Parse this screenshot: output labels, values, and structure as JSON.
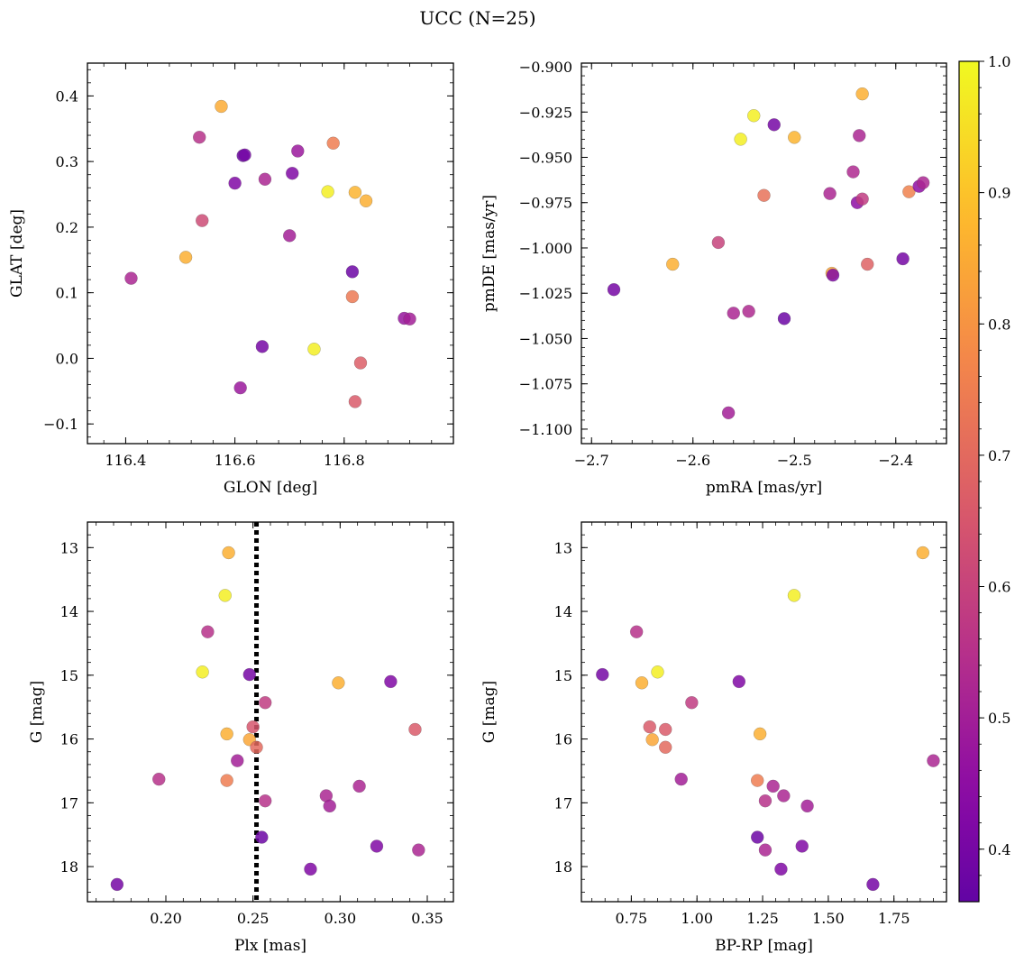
{
  "title": "UCC (N=25)",
  "colormap": {
    "name": "plasma",
    "stops": [
      "#0d0887",
      "#5302a3",
      "#8b0aa5",
      "#b83289",
      "#db5c68",
      "#f48849",
      "#febd2a",
      "#f0f921"
    ],
    "min": 0.36,
    "max": 1.0,
    "ticks": [
      "0.4",
      "0.5",
      "0.6",
      "0.7",
      "0.8",
      "0.9",
      "1.0"
    ],
    "tick_values": [
      0.4,
      0.5,
      0.6,
      0.7,
      0.8,
      0.9,
      1.0
    ]
  },
  "chart_data": [
    {
      "type": "scatter",
      "xlabel": "GLON [deg]",
      "ylabel": "GLAT [deg]",
      "xlim": [
        116.33,
        117.0
      ],
      "ylim": [
        -0.13,
        0.45
      ],
      "xticks": [
        116.4,
        116.6,
        116.8
      ],
      "xtick_labels": [
        "116.4",
        "116.6",
        "116.8"
      ],
      "yticks": [
        -0.1,
        0.0,
        0.1,
        0.2,
        0.3,
        0.4
      ],
      "ytick_labels": [
        "−0.1",
        "0.0",
        "0.1",
        "0.2",
        "0.3",
        "0.4"
      ],
      "points": [
        {
          "x": 116.41,
          "y": 0.122,
          "c": 0.52
        },
        {
          "x": 116.51,
          "y": 0.154,
          "c": 0.86
        },
        {
          "x": 116.535,
          "y": 0.337,
          "c": 0.55
        },
        {
          "x": 116.54,
          "y": 0.21,
          "c": 0.62
        },
        {
          "x": 116.575,
          "y": 0.384,
          "c": 0.85
        },
        {
          "x": 116.6,
          "y": 0.267,
          "c": 0.42
        },
        {
          "x": 116.615,
          "y": 0.309,
          "c": 0.38
        },
        {
          "x": 116.618,
          "y": 0.31,
          "c": 0.4
        },
        {
          "x": 116.61,
          "y": -0.045,
          "c": 0.48
        },
        {
          "x": 116.655,
          "y": 0.273,
          "c": 0.52
        },
        {
          "x": 116.65,
          "y": 0.018,
          "c": 0.4
        },
        {
          "x": 116.7,
          "y": 0.187,
          "c": 0.5
        },
        {
          "x": 116.705,
          "y": 0.282,
          "c": 0.42
        },
        {
          "x": 116.715,
          "y": 0.316,
          "c": 0.48
        },
        {
          "x": 116.745,
          "y": 0.014,
          "c": 0.98
        },
        {
          "x": 116.77,
          "y": 0.254,
          "c": 0.98
        },
        {
          "x": 116.78,
          "y": 0.328,
          "c": 0.75
        },
        {
          "x": 116.815,
          "y": 0.132,
          "c": 0.38
        },
        {
          "x": 116.815,
          "y": 0.094,
          "c": 0.74
        },
        {
          "x": 116.82,
          "y": 0.253,
          "c": 0.87
        },
        {
          "x": 116.82,
          "y": -0.066,
          "c": 0.66
        },
        {
          "x": 116.83,
          "y": -0.007,
          "c": 0.67
        },
        {
          "x": 116.84,
          "y": 0.24,
          "c": 0.86
        },
        {
          "x": 116.91,
          "y": 0.061,
          "c": 0.47
        },
        {
          "x": 116.92,
          "y": 0.06,
          "c": 0.5
        }
      ]
    },
    {
      "type": "scatter",
      "xlabel": "pmRA [mas/yr]",
      "ylabel": "pmDE [mas/yr]",
      "xlim": [
        -2.71,
        -2.35
      ],
      "ylim": [
        -1.108,
        -0.898
      ],
      "xticks": [
        -2.7,
        -2.6,
        -2.5,
        -2.4
      ],
      "xtick_labels": [
        "−2.7",
        "−2.6",
        "−2.5",
        "−2.4"
      ],
      "yticks": [
        -1.1,
        -1.075,
        -1.05,
        -1.025,
        -1.0,
        -0.975,
        -0.95,
        -0.925,
        -0.9
      ],
      "ytick_labels": [
        "−1.100",
        "−1.075",
        "−1.050",
        "−1.025",
        "−1.000",
        "−0.975",
        "−0.950",
        "−0.925",
        "−0.900"
      ],
      "points": [
        {
          "x": -2.678,
          "y": -1.023,
          "c": 0.4
        },
        {
          "x": -2.62,
          "y": -1.009,
          "c": 0.86
        },
        {
          "x": -2.575,
          "y": -0.997,
          "c": 0.6
        },
        {
          "x": -2.565,
          "y": -1.091,
          "c": 0.5
        },
        {
          "x": -2.56,
          "y": -1.036,
          "c": 0.52
        },
        {
          "x": -2.553,
          "y": -0.94,
          "c": 0.98
        },
        {
          "x": -2.545,
          "y": -1.035,
          "c": 0.53
        },
        {
          "x": -2.54,
          "y": -0.927,
          "c": 0.98
        },
        {
          "x": -2.53,
          "y": -0.971,
          "c": 0.72
        },
        {
          "x": -2.52,
          "y": -0.932,
          "c": 0.4
        },
        {
          "x": -2.51,
          "y": -1.039,
          "c": 0.38
        },
        {
          "x": -2.5,
          "y": -0.939,
          "c": 0.87
        },
        {
          "x": -2.465,
          "y": -0.97,
          "c": 0.52
        },
        {
          "x": -2.463,
          "y": -1.014,
          "c": 0.84
        },
        {
          "x": -2.462,
          "y": -1.015,
          "c": 0.42
        },
        {
          "x": -2.442,
          "y": -0.958,
          "c": 0.53
        },
        {
          "x": -2.438,
          "y": -0.975,
          "c": 0.45
        },
        {
          "x": -2.436,
          "y": -0.938,
          "c": 0.52
        },
        {
          "x": -2.433,
          "y": -0.915,
          "c": 0.86
        },
        {
          "x": -2.433,
          "y": -0.973,
          "c": 0.58
        },
        {
          "x": -2.428,
          "y": -1.009,
          "c": 0.68
        },
        {
          "x": -2.393,
          "y": -1.006,
          "c": 0.4
        },
        {
          "x": -2.387,
          "y": -0.969,
          "c": 0.76
        },
        {
          "x": -2.377,
          "y": -0.966,
          "c": 0.45
        },
        {
          "x": -2.373,
          "y": -0.964,
          "c": 0.52
        }
      ]
    },
    {
      "type": "scatter",
      "xlabel": "Plx [mas]",
      "ylabel": "G [mag]",
      "xlim": [
        0.155,
        0.365
      ],
      "ylim": [
        18.55,
        12.6
      ],
      "xticks": [
        0.2,
        0.25,
        0.3,
        0.35
      ],
      "xtick_labels": [
        "0.20",
        "0.25",
        "0.30",
        "0.35"
      ],
      "yticks": [
        13,
        14,
        15,
        16,
        17,
        18
      ],
      "ytick_labels": [
        "13",
        "14",
        "15",
        "16",
        "17",
        "18"
      ],
      "vline_x": 0.252,
      "points": [
        {
          "x": 0.172,
          "y": 18.28,
          "c": 0.4
        },
        {
          "x": 0.196,
          "y": 16.63,
          "c": 0.55
        },
        {
          "x": 0.221,
          "y": 14.95,
          "c": 0.98
        },
        {
          "x": 0.224,
          "y": 14.32,
          "c": 0.55
        },
        {
          "x": 0.234,
          "y": 13.75,
          "c": 0.98
        },
        {
          "x": 0.235,
          "y": 15.92,
          "c": 0.86
        },
        {
          "x": 0.235,
          "y": 16.65,
          "c": 0.75
        },
        {
          "x": 0.236,
          "y": 13.08,
          "c": 0.86
        },
        {
          "x": 0.241,
          "y": 16.34,
          "c": 0.5
        },
        {
          "x": 0.248,
          "y": 14.99,
          "c": 0.4
        },
        {
          "x": 0.248,
          "y": 16.01,
          "c": 0.84
        },
        {
          "x": 0.25,
          "y": 15.81,
          "c": 0.65
        },
        {
          "x": 0.252,
          "y": 16.13,
          "c": 0.7
        },
        {
          "x": 0.255,
          "y": 17.54,
          "c": 0.38
        },
        {
          "x": 0.257,
          "y": 16.97,
          "c": 0.55
        },
        {
          "x": 0.257,
          "y": 15.43,
          "c": 0.58
        },
        {
          "x": 0.283,
          "y": 18.04,
          "c": 0.42
        },
        {
          "x": 0.292,
          "y": 16.89,
          "c": 0.52
        },
        {
          "x": 0.294,
          "y": 17.05,
          "c": 0.5
        },
        {
          "x": 0.299,
          "y": 15.12,
          "c": 0.86
        },
        {
          "x": 0.311,
          "y": 16.74,
          "c": 0.52
        },
        {
          "x": 0.321,
          "y": 17.68,
          "c": 0.42
        },
        {
          "x": 0.329,
          "y": 15.1,
          "c": 0.42
        },
        {
          "x": 0.343,
          "y": 15.85,
          "c": 0.66
        },
        {
          "x": 0.345,
          "y": 17.74,
          "c": 0.52
        }
      ]
    },
    {
      "type": "scatter",
      "xlabel": "BP-RP [mag]",
      "ylabel": "G [mag]",
      "xlim": [
        0.56,
        1.95
      ],
      "ylim": [
        18.55,
        12.6
      ],
      "xticks": [
        0.75,
        1.0,
        1.25,
        1.5,
        1.75
      ],
      "xtick_labels": [
        "0.75",
        "1.00",
        "1.25",
        "1.50",
        "1.75"
      ],
      "yticks": [
        13,
        14,
        15,
        16,
        17,
        18
      ],
      "ytick_labels": [
        "13",
        "14",
        "15",
        "16",
        "17",
        "18"
      ],
      "points": [
        {
          "x": 0.64,
          "y": 14.99,
          "c": 0.4
        },
        {
          "x": 0.77,
          "y": 14.32,
          "c": 0.55
        },
        {
          "x": 0.79,
          "y": 15.12,
          "c": 0.86
        },
        {
          "x": 0.82,
          "y": 15.81,
          "c": 0.66
        },
        {
          "x": 0.83,
          "y": 16.01,
          "c": 0.84
        },
        {
          "x": 0.85,
          "y": 14.95,
          "c": 0.98
        },
        {
          "x": 0.88,
          "y": 15.85,
          "c": 0.66
        },
        {
          "x": 0.88,
          "y": 16.13,
          "c": 0.7
        },
        {
          "x": 0.94,
          "y": 16.63,
          "c": 0.5
        },
        {
          "x": 0.98,
          "y": 15.43,
          "c": 0.58
        },
        {
          "x": 1.16,
          "y": 15.1,
          "c": 0.42
        },
        {
          "x": 1.23,
          "y": 16.65,
          "c": 0.75
        },
        {
          "x": 1.23,
          "y": 17.54,
          "c": 0.38
        },
        {
          "x": 1.24,
          "y": 15.92,
          "c": 0.86
        },
        {
          "x": 1.26,
          "y": 16.97,
          "c": 0.55
        },
        {
          "x": 1.26,
          "y": 17.74,
          "c": 0.52
        },
        {
          "x": 1.29,
          "y": 16.74,
          "c": 0.52
        },
        {
          "x": 1.32,
          "y": 18.04,
          "c": 0.42
        },
        {
          "x": 1.33,
          "y": 16.89,
          "c": 0.52
        },
        {
          "x": 1.37,
          "y": 13.75,
          "c": 0.98
        },
        {
          "x": 1.4,
          "y": 17.68,
          "c": 0.42
        },
        {
          "x": 1.42,
          "y": 17.05,
          "c": 0.5
        },
        {
          "x": 1.67,
          "y": 18.28,
          "c": 0.4
        },
        {
          "x": 1.86,
          "y": 13.08,
          "c": 0.86
        },
        {
          "x": 1.9,
          "y": 16.34,
          "c": 0.52
        }
      ]
    }
  ]
}
